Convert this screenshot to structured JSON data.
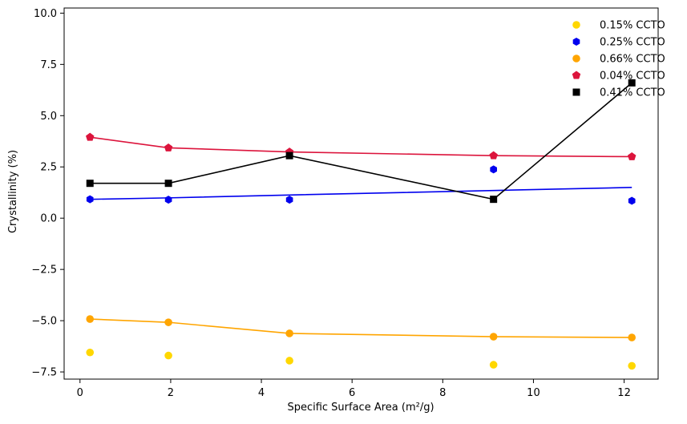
{
  "chart_data": {
    "type": "scatter",
    "title": "",
    "xlabel": "Specific Surface Area (m²/g)",
    "ylabel": "Crystallinity (%)",
    "xlim": [
      -0.35,
      12.75
    ],
    "ylim": [
      -7.85,
      10.25
    ],
    "x_ticks": [
      0,
      2,
      4,
      6,
      8,
      10,
      12
    ],
    "y_ticks": [
      -7.5,
      -5.0,
      -2.5,
      0.0,
      2.5,
      5.0,
      7.5,
      10.0
    ],
    "x_tick_labels": [
      "0",
      "2",
      "4",
      "6",
      "8",
      "10",
      "12"
    ],
    "y_tick_labels": [
      "−7.5",
      "−5.0",
      "−2.5",
      "0.0",
      "2.5",
      "5.0",
      "7.5",
      "10.0"
    ],
    "grid": false,
    "legend": "top-right",
    "x": [
      0.22,
      1.95,
      4.62,
      9.12,
      12.17
    ],
    "series": [
      {
        "name": "0.15% CCTO",
        "color": "#ffd700",
        "marker": "circle",
        "points_y": [
          -6.55,
          -6.7,
          -6.95,
          -7.15,
          -7.2
        ],
        "line": null
      },
      {
        "name": "0.25% CCTO",
        "color": "#0000ee",
        "marker": "hexagon",
        "points_y": [
          0.92,
          0.9,
          0.9,
          2.38,
          0.85
        ],
        "line": [
          0.92,
          0.99,
          1.13,
          1.35,
          1.5
        ]
      },
      {
        "name": "0.66% CCTO",
        "color": "#ffa500",
        "marker": "circle",
        "points_y": [
          -4.92,
          -5.08,
          -5.62,
          -5.78,
          -5.82
        ],
        "line": [
          -4.92,
          -5.08,
          -5.62,
          -5.78,
          -5.82
        ]
      },
      {
        "name": "0.04% CCTO",
        "color": "#dc143c",
        "marker": "pentagon",
        "points_y": [
          3.95,
          3.43,
          3.23,
          3.05,
          3.0
        ],
        "line": [
          3.95,
          3.43,
          3.23,
          3.05,
          3.0
        ]
      },
      {
        "name": "0.41% CCTO",
        "color": "#000000",
        "marker": "square",
        "points_y": [
          1.7,
          1.7,
          3.05,
          0.92,
          6.6
        ],
        "line": [
          1.7,
          1.7,
          3.05,
          0.92,
          6.6
        ]
      }
    ]
  }
}
